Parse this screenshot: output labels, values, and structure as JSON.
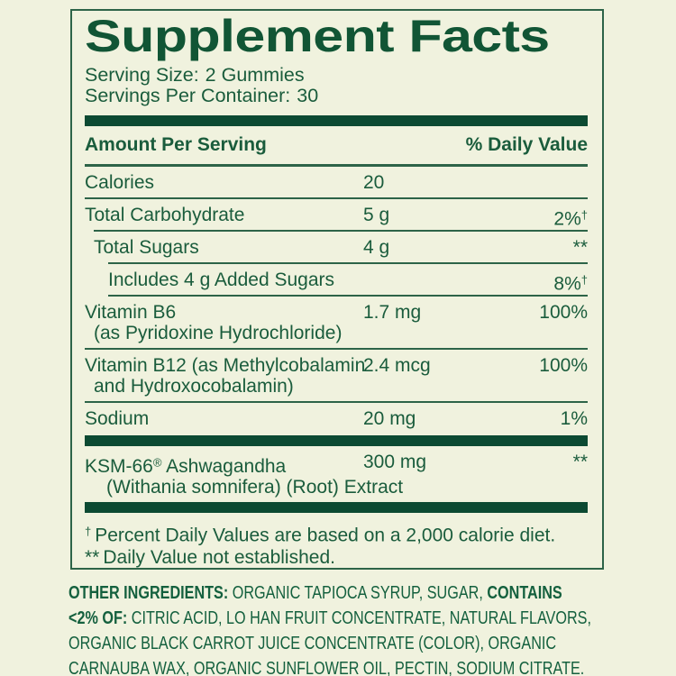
{
  "colors": {
    "bg": "#f0f2de",
    "text": "#1a5c3c",
    "dark": "#0c4a32",
    "line": "#2d6448"
  },
  "panel": {
    "title": "Supplement Facts",
    "serving_size_label": "Serving Size:",
    "serving_size_value": "2 Gummies",
    "servings_label": "Servings Per Container:",
    "servings_value": "30",
    "col_left": "Amount Per Serving",
    "col_right": "% Daily Value",
    "rows": [
      {
        "name": "Calories",
        "amount": "20",
        "dv": ""
      },
      {
        "name": "Total Carbohydrate",
        "amount": "5 g",
        "dv": "2%",
        "dv_sup": "†"
      },
      {
        "name": "Total Sugars",
        "amount": "4 g",
        "dv": "**"
      },
      {
        "name": "Includes 4 g Added Sugars",
        "amount": "",
        "dv": "8%",
        "dv_sup": "†"
      },
      {
        "name": "Vitamin B6",
        "name2": "(as Pyridoxine Hydrochloride)",
        "amount": "1.7 mg",
        "dv": "100%"
      },
      {
        "name": "Vitamin B12 (as Methylcobalamin",
        "name2": "and Hydroxocobalamin)",
        "amount": "2.4 mcg",
        "dv": "100%"
      },
      {
        "name": "Sodium",
        "amount": "20 mg",
        "dv": "1%"
      },
      {
        "name": "KSM-66",
        "name_sup": "®",
        "name_post": " Ashwagandha",
        "name2": "(Withania somnifera) (Root) Extract",
        "amount": "300 mg",
        "dv": "**"
      }
    ],
    "footnotes": [
      {
        "symbol": "†",
        "text": "Percent Daily Values are based on a 2,000 calorie diet."
      },
      {
        "symbol": "**",
        "text": "Daily Value not established."
      }
    ]
  },
  "other_ingredients": {
    "lines": [
      {
        "bold": "OTHER INGREDIENTS:",
        "text": " ORGANIC TAPIOCA SYRUP, SUGAR, ",
        "bold2": "CONTAINS"
      },
      {
        "bold": "<2% OF:",
        "text": " CITRIC ACID, LO HAN FRUIT CONCENTRATE, NATURAL FLAVORS,"
      },
      {
        "text": "ORGANIC BLACK CARROT JUICE CONCENTRATE (COLOR), ORGANIC"
      },
      {
        "text": "CARNAUBA WAX, ORGANIC SUNFLOWER OIL, PECTIN, SODIUM CITRATE."
      }
    ]
  }
}
